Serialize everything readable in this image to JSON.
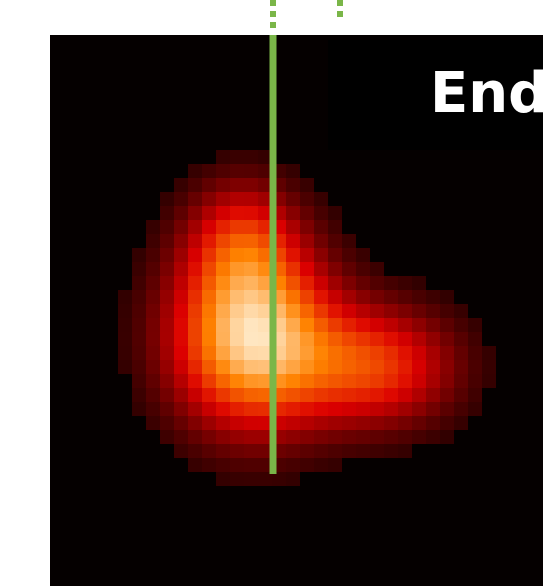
{
  "label": "End"
}
